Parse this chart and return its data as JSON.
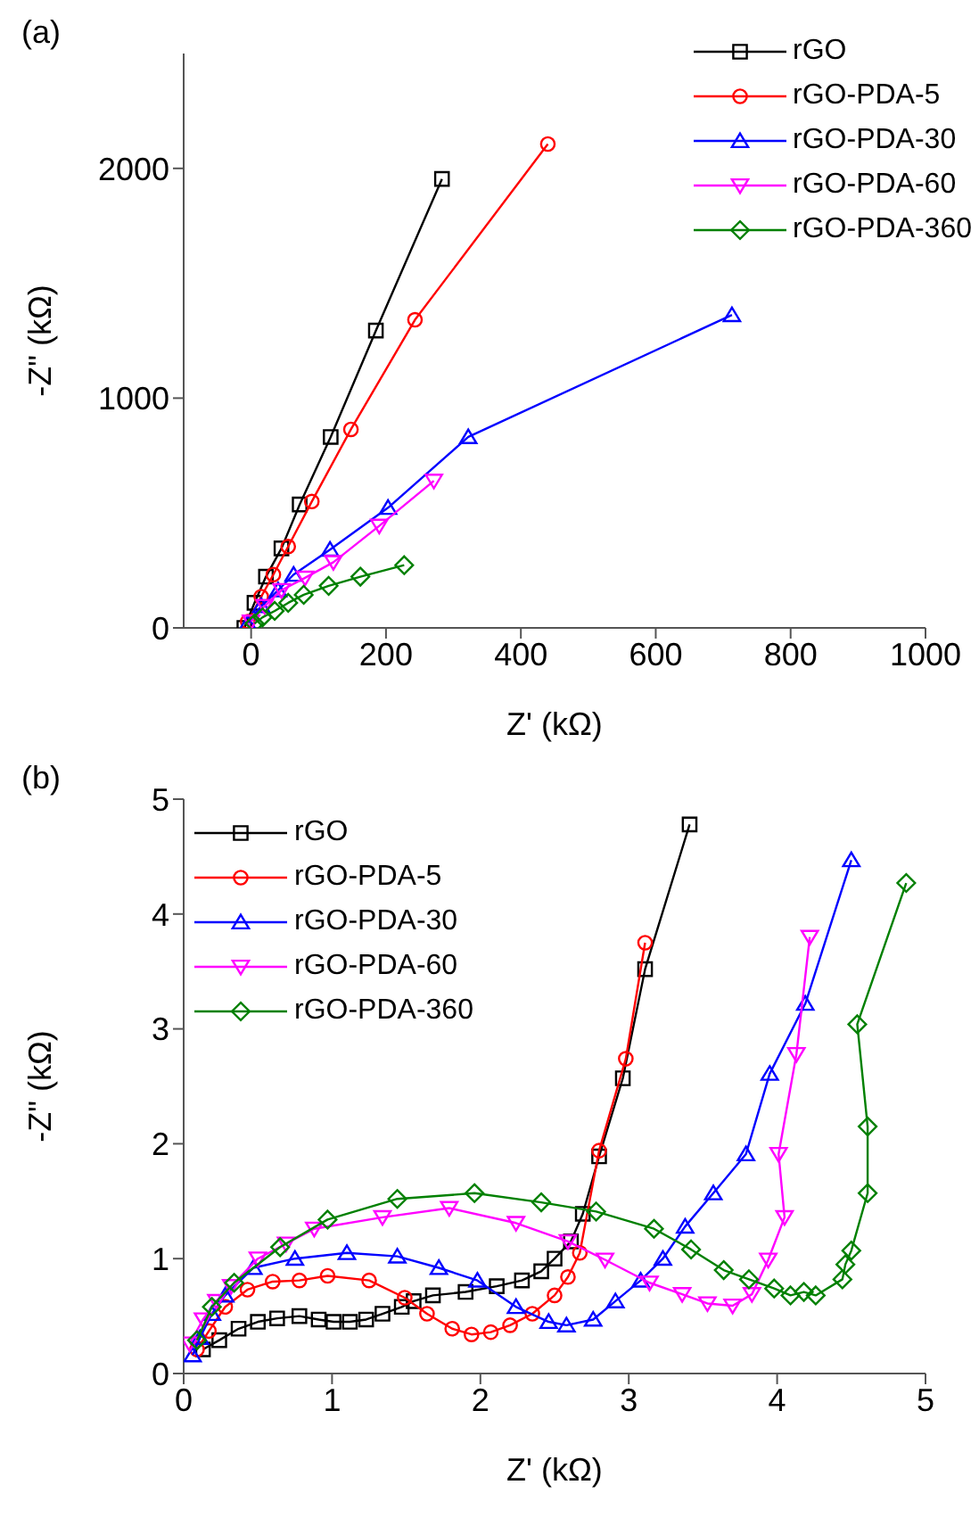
{
  "chart_data": [
    {
      "type": "line",
      "title": "(a)",
      "xlabel": "Z' (kΩ)",
      "ylabel": "-Z\" (kΩ)",
      "xlim": [
        -100,
        1000
      ],
      "xticks": [
        0,
        200,
        400,
        600,
        800,
        1000
      ],
      "ylim": [
        0,
        2500
      ],
      "yticks": [
        0,
        1000,
        2000
      ],
      "legend": "top right",
      "series": [
        {
          "name": "rGO",
          "color": "#000000",
          "marker": "square",
          "x": [
            -10,
            5,
            22,
            45,
            72,
            118,
            185,
            283
          ],
          "values": [
            0,
            109,
            223,
            346,
            537,
            831,
            1294,
            1954
          ]
        },
        {
          "name": "rGO-PDA-5",
          "color": "#ff0000",
          "marker": "circle",
          "x": [
            -5,
            15,
            33,
            55,
            90,
            148,
            243,
            440
          ],
          "values": [
            27,
            136,
            232,
            354,
            550,
            864,
            1341,
            2106
          ]
        },
        {
          "name": "rGO-PDA-30",
          "color": "#0000ff",
          "marker": "triangle",
          "x": [
            -5,
            15,
            40,
            63,
            117,
            203,
            322,
            713
          ],
          "values": [
            19,
            95,
            164,
            232,
            341,
            523,
            831,
            1362
          ]
        },
        {
          "name": "rGO-PDA-60",
          "color": "#ff00ff",
          "marker": "triangle-down",
          "x": [
            0,
            20,
            45,
            80,
            122,
            190,
            271
          ],
          "values": [
            27,
            95,
            164,
            218,
            286,
            444,
            640
          ]
        },
        {
          "name": "rGO-PDA-360",
          "color": "#008000",
          "marker": "diamond",
          "x": [
            5,
            17,
            35,
            55,
            78,
            115,
            162,
            227
          ],
          "values": [
            19,
            46,
            74,
            109,
            144,
            183,
            223,
            273
          ]
        }
      ]
    },
    {
      "type": "line",
      "title": "(b)",
      "xlabel": "Z' (kΩ)",
      "ylabel": "-Z\" (kΩ)",
      "xlim": [
        0,
        5
      ],
      "xticks": [
        0,
        1,
        2,
        3,
        4,
        5
      ],
      "ylim": [
        0,
        5
      ],
      "yticks": [
        0,
        1,
        2,
        3,
        4,
        5
      ],
      "legend": "top left",
      "series": [
        {
          "name": "rGO",
          "color": "#000000",
          "marker": "square",
          "x": [
            0.13,
            0.24,
            0.37,
            0.5,
            0.63,
            0.78,
            0.91,
            1.01,
            1.12,
            1.23,
            1.34,
            1.47,
            1.55,
            1.68,
            1.9,
            2.11,
            2.28,
            2.41,
            2.5,
            2.61,
            2.69,
            2.8,
            2.96,
            3.11,
            3.41
          ],
          "values": [
            0.21,
            0.29,
            0.39,
            0.45,
            0.48,
            0.5,
            0.47,
            0.45,
            0.45,
            0.47,
            0.52,
            0.58,
            0.63,
            0.68,
            0.71,
            0.76,
            0.81,
            0.89,
            1.0,
            1.15,
            1.39,
            1.89,
            2.57,
            3.52,
            4.78
          ]
        },
        {
          "name": "rGO-PDA-5",
          "color": "#ff0000",
          "marker": "circle",
          "x": [
            0.09,
            0.17,
            0.28,
            0.43,
            0.6,
            0.78,
            0.97,
            1.25,
            1.49,
            1.64,
            1.81,
            1.94,
            2.07,
            2.2,
            2.35,
            2.5,
            2.59,
            2.67,
            2.8,
            2.98,
            3.11
          ],
          "values": [
            0.21,
            0.37,
            0.58,
            0.73,
            0.8,
            0.81,
            0.85,
            0.81,
            0.66,
            0.52,
            0.39,
            0.34,
            0.36,
            0.42,
            0.52,
            0.68,
            0.84,
            1.05,
            1.94,
            2.74,
            3.75
          ]
        },
        {
          "name": "rGO-PDA-30",
          "color": "#0000ff",
          "marker": "triangle",
          "x": [
            0.06,
            0.11,
            0.19,
            0.28,
            0.47,
            0.75,
            1.1,
            1.44,
            1.72,
            1.98,
            2.24,
            2.46,
            2.58,
            2.76,
            2.91,
            3.08,
            3.23,
            3.38,
            3.57,
            3.79,
            3.95,
            4.19,
            4.5
          ],
          "values": [
            0.16,
            0.31,
            0.52,
            0.68,
            0.92,
            1.0,
            1.05,
            1.02,
            0.92,
            0.81,
            0.58,
            0.45,
            0.42,
            0.47,
            0.63,
            0.81,
            1.0,
            1.28,
            1.57,
            1.91,
            2.61,
            3.22,
            4.47
          ]
        },
        {
          "name": "rGO-PDA-60",
          "color": "#ff00ff",
          "marker": "triangle-down",
          "x": [
            0.04,
            0.13,
            0.22,
            0.32,
            0.5,
            0.69,
            0.88,
            1.34,
            1.79,
            2.24,
            2.59,
            2.84,
            3.14,
            3.36,
            3.53,
            3.7,
            3.83,
            3.94,
            4.05,
            4.01,
            4.13,
            4.22
          ],
          "values": [
            0.26,
            0.47,
            0.63,
            0.76,
            1.0,
            1.13,
            1.26,
            1.36,
            1.44,
            1.31,
            1.15,
            0.99,
            0.79,
            0.69,
            0.61,
            0.59,
            0.69,
            0.99,
            1.36,
            1.91,
            2.78,
            3.8
          ]
        },
        {
          "name": "rGO-PDA-360",
          "color": "#008000",
          "marker": "diamond",
          "x": [
            0.09,
            0.19,
            0.34,
            0.65,
            0.97,
            1.44,
            1.96,
            2.41,
            2.78,
            3.17,
            3.42,
            3.64,
            3.81,
            3.98,
            4.09,
            4.18,
            4.26,
            4.44,
            4.46,
            4.5,
            4.61,
            4.61,
            4.54,
            4.87
          ],
          "values": [
            0.29,
            0.58,
            0.79,
            1.1,
            1.34,
            1.52,
            1.57,
            1.49,
            1.41,
            1.26,
            1.08,
            0.9,
            0.82,
            0.74,
            0.68,
            0.71,
            0.68,
            0.82,
            0.95,
            1.07,
            1.57,
            2.15,
            3.04,
            4.27
          ]
        }
      ]
    }
  ]
}
